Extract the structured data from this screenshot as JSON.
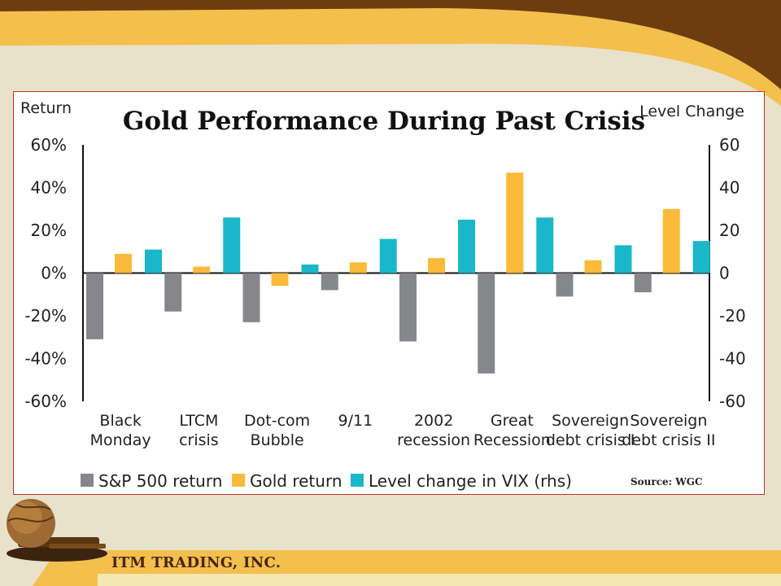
{
  "company": {
    "name": "ITM TRADING, INC."
  },
  "colors": {
    "sp500": "#86878b",
    "gold": "#fbba39",
    "vix": "#19b7c9",
    "frame_border": "#c0302a",
    "banner_gold": "#f3c04d",
    "banner_brown": "#6e3d0f"
  },
  "chart_data": {
    "type": "bar",
    "title": "Gold Performance During Past Crisis",
    "ylabel_left": "Return",
    "ylabel_right": "Level Change",
    "source": "Source: WGC",
    "ylim_left": [
      -60,
      60
    ],
    "ylim_right": [
      -60,
      60
    ],
    "y_ticks_left": [
      "60%",
      "40%",
      "20%",
      "0%",
      "-20%",
      "-40%",
      "-60%"
    ],
    "y_ticks_right": [
      "60",
      "40",
      "20",
      "0",
      "-20",
      "-40",
      "-60"
    ],
    "categories": [
      [
        "Black",
        "Monday"
      ],
      [
        "LTCM",
        "crisis"
      ],
      [
        "Dot-com",
        "Bubble"
      ],
      [
        "9/11"
      ],
      [
        "2002",
        "recession"
      ],
      [
        "Great",
        "Recession"
      ],
      [
        "Sovereign",
        "debt crisis I"
      ],
      [
        "Sovereign",
        "debt crisis II"
      ]
    ],
    "legend_position": "bottom",
    "series": [
      {
        "name": "S&P 500 return",
        "axis": "left",
        "values": [
          -31,
          -18,
          -23,
          -8,
          -32,
          -47,
          -11,
          -9
        ]
      },
      {
        "name": "Gold return",
        "axis": "left",
        "values": [
          9,
          3,
          -6,
          5,
          7,
          47,
          6,
          30
        ]
      },
      {
        "name": "Level change in VIX (rhs)",
        "axis": "right",
        "values": [
          11,
          26,
          4,
          16,
          25,
          26,
          13,
          15
        ]
      }
    ]
  }
}
